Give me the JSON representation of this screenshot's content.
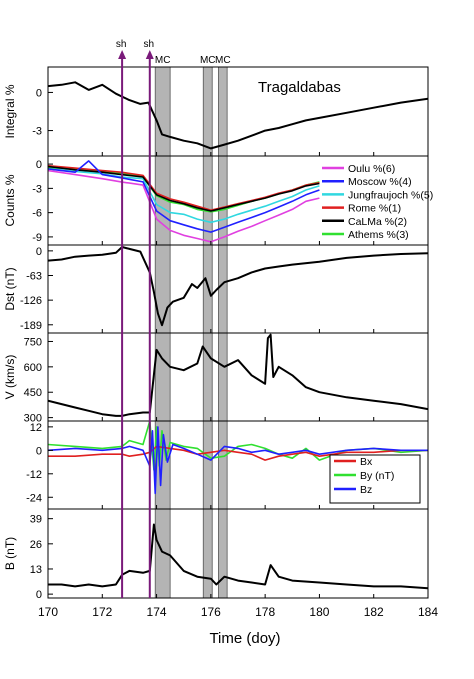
{
  "figure": {
    "station_title": "Tragaldabas",
    "xlabel": "Time (doy)",
    "x_ticks": [
      170,
      172,
      174,
      176,
      178,
      180,
      182,
      184
    ],
    "shock_label": "sh",
    "mc_label": "MC"
  },
  "chart_data": {
    "type": "line",
    "xlim": [
      170,
      184
    ],
    "shocks": [
      172.73,
      173.75
    ],
    "mc_intervals": [
      [
        173.95,
        174.5
      ],
      [
        175.72,
        176.05
      ],
      [
        176.28,
        176.6
      ]
    ],
    "panels": [
      {
        "id": "integral",
        "ylabel": "Integral %",
        "ylim": [
          -5,
          2
        ],
        "ticks": [
          0,
          -3
        ],
        "series": [
          {
            "color": "#000000",
            "x": [
              170,
              170.5,
              171,
              171.5,
              172,
              172.5,
              173,
              173.4,
              173.7,
              174,
              174.2,
              174.5,
              175,
              175.5,
              176,
              176.5,
              177,
              177.5,
              178,
              178.5,
              179,
              179.5,
              180,
              181,
              182,
              183,
              184
            ],
            "y": [
              0.5,
              0.6,
              0.8,
              0.2,
              0.6,
              -0.1,
              -0.6,
              -0.9,
              -0.8,
              -2.2,
              -3.3,
              -3.5,
              -3.8,
              -4.0,
              -4.4,
              -4.1,
              -3.8,
              -3.4,
              -3.0,
              -2.8,
              -2.5,
              -2.2,
              -2.0,
              -1.6,
              -1.2,
              -0.8,
              -0.5
            ]
          }
        ]
      },
      {
        "id": "counts",
        "ylabel": "Counts %",
        "ylim": [
          -10,
          1
        ],
        "ticks": [
          0,
          -3,
          -6,
          -9
        ],
        "legend": [
          {
            "label": "Oulu %(6)",
            "color": "#e040e0"
          },
          {
            "label": "Moscow %(4)",
            "color": "#2020ff"
          },
          {
            "label": "Jungfraujoch %(5)",
            "color": "#30d8e0"
          },
          {
            "label": "Rome %(1)",
            "color": "#e02020"
          },
          {
            "label": "CaLMa %(2)",
            "color": "#000000"
          },
          {
            "label": "Athems %(3)",
            "color": "#30e030"
          }
        ],
        "series": [
          {
            "color": "#30d8e0",
            "x": [
              170,
              171,
              172,
              172.7,
              173.5,
              174,
              174.5,
              175,
              175.5,
              176,
              176.5,
              177,
              177.5,
              178,
              178.5,
              179,
              179.5,
              180
            ],
            "y": [
              -0.5,
              -0.9,
              -1.2,
              -1.6,
              -1.8,
              -5.0,
              -6.0,
              -6.2,
              -6.8,
              -7.2,
              -6.8,
              -6.2,
              -5.7,
              -5.2,
              -4.6,
              -4.0,
              -3.2,
              -2.7
            ]
          },
          {
            "color": "#30e030",
            "x": [
              170,
              171,
              172,
              172.7,
              173.5,
              174,
              174.5,
              175,
              175.5,
              176,
              176.5,
              177,
              177.5,
              178,
              178.5,
              179,
              179.5,
              180
            ],
            "y": [
              -0.4,
              -0.6,
              -0.9,
              -1.1,
              -1.6,
              -3.9,
              -4.7,
              -5.0,
              -5.6,
              -5.9,
              -5.6,
              -5.1,
              -4.6,
              -4.2,
              -3.7,
              -3.2,
              -2.6,
              -2.2
            ]
          },
          {
            "color": "#e02020",
            "x": [
              170,
              171,
              172,
              172.7,
              173.5,
              174,
              174.5,
              175,
              175.5,
              176,
              176.5,
              177,
              177.5,
              178,
              178.5,
              179,
              179.5,
              180
            ],
            "y": [
              -0.2,
              -0.5,
              -0.8,
              -1.0,
              -1.4,
              -3.6,
              -4.3,
              -4.7,
              -5.2,
              -5.7,
              -5.3,
              -4.9,
              -4.5,
              -4.1,
              -3.6,
              -3.2,
              -2.6,
              -2.3
            ]
          },
          {
            "color": "#000000",
            "x": [
              170,
              171,
              172,
              172.7,
              173.5,
              174,
              174.5,
              175,
              175.5,
              176,
              176.5,
              177,
              177.5,
              178,
              178.5,
              179,
              179.5,
              180
            ],
            "y": [
              -0.3,
              -0.7,
              -1.0,
              -1.3,
              -1.6,
              -3.8,
              -4.5,
              -4.9,
              -5.4,
              -5.8,
              -5.4,
              -5.0,
              -4.6,
              -4.2,
              -3.7,
              -3.3,
              -2.7,
              -2.4
            ]
          },
          {
            "color": "#2020ff",
            "x": [
              170,
              171,
              171.5,
              172,
              172.7,
              173.5,
              174,
              174.5,
              175,
              175.5,
              176,
              176.5,
              177,
              177.5,
              178,
              178.5,
              179,
              179.5,
              180
            ],
            "y": [
              -0.6,
              -1.0,
              0.4,
              -1.3,
              -1.7,
              -2.2,
              -5.8,
              -7.0,
              -7.5,
              -8.0,
              -8.4,
              -7.8,
              -7.2,
              -6.6,
              -6.0,
              -5.3,
              -4.6,
              -3.8,
              -3.2
            ]
          },
          {
            "color": "#e040e0",
            "x": [
              170,
              171,
              172,
              172.7,
              173.5,
              174,
              174.5,
              175,
              175.5,
              176,
              176.5,
              177,
              177.5,
              178,
              178.5,
              179,
              179.5,
              180
            ],
            "y": [
              -0.8,
              -1.3,
              -1.8,
              -2.2,
              -2.6,
              -6.8,
              -8.2,
              -8.8,
              -9.2,
              -9.6,
              -9.0,
              -8.3,
              -7.7,
              -7.0,
              -6.3,
              -5.6,
              -4.6,
              -4.2
            ]
          }
        ]
      },
      {
        "id": "dst",
        "ylabel": "Dst (nT)",
        "ylim": [
          -210,
          15
        ],
        "ticks": [
          0,
          -63,
          -126,
          -189
        ],
        "series": [
          {
            "color": "#000000",
            "x": [
              170,
              170.5,
              171,
              171.5,
              172,
              172.5,
              172.73,
              173,
              173.4,
              173.75,
              173.9,
              174.05,
              174.2,
              174.4,
              174.6,
              175,
              175.3,
              175.5,
              175.8,
              176,
              176.2,
              176.5,
              177,
              177.5,
              178,
              178.5,
              179,
              180,
              181,
              182,
              183,
              184
            ],
            "y": [
              -25,
              -22,
              -15,
              -12,
              -10,
              -5,
              10,
              5,
              -2,
              -55,
              -105,
              -160,
              -190,
              -145,
              -130,
              -120,
              -85,
              -95,
              -70,
              -115,
              -100,
              -80,
              -70,
              -55,
              -45,
              -40,
              -35,
              -28,
              -18,
              -12,
              -8,
              -6
            ]
          }
        ]
      },
      {
        "id": "speed",
        "ylabel": "V (km/s)",
        "ylim": [
          280,
          800
        ],
        "ticks": [
          300,
          450,
          600,
          750
        ],
        "series": [
          {
            "color": "#000000",
            "x": [
              170,
              170.5,
              171,
              171.5,
              172,
              172.5,
              172.73,
              173,
              173.5,
              173.75,
              174,
              174.2,
              174.5,
              175,
              175.5,
              175.7,
              176,
              176.5,
              177,
              177.5,
              178,
              178.1,
              178.2,
              178.3,
              178.5,
              179,
              179.5,
              180,
              181,
              182,
              183,
              184
            ],
            "y": [
              400,
              380,
              360,
              340,
              320,
              310,
              310,
              320,
              330,
              330,
              700,
              650,
              600,
              580,
              620,
              720,
              650,
              600,
              640,
              550,
              500,
              770,
              790,
              540,
              600,
              550,
              480,
              450,
              420,
              400,
              380,
              350
            ]
          }
        ]
      },
      {
        "id": "imf",
        "ylabel": "",
        "ylim": [
          -30,
          15
        ],
        "ticks": [
          12,
          0,
          -12,
          -24
        ],
        "legend": [
          {
            "label": "Bx",
            "color": "#e02020"
          },
          {
            "label": "By  (nT)",
            "color": "#30e030"
          },
          {
            "label": "Bz",
            "color": "#2020ff"
          }
        ],
        "series": [
          {
            "color": "#30e030",
            "x": [
              170,
              171,
              172,
              172.73,
              173,
              173.5,
              173.75,
              173.9,
              174.0,
              174.1,
              174.2,
              174.35,
              174.5,
              175,
              175.5,
              176,
              176.5,
              177,
              177.5,
              178,
              178.5,
              179,
              179.5,
              180,
              181,
              182,
              183,
              184
            ],
            "y": [
              3,
              2,
              1,
              2,
              5,
              3,
              15,
              -10,
              12,
              -8,
              10,
              -5,
              4,
              2,
              1,
              -4,
              -3,
              2,
              3,
              1,
              -2,
              -4,
              1,
              -5,
              0,
              1,
              -1,
              0
            ]
          },
          {
            "color": "#e02020",
            "x": [
              170,
              171,
              172,
              172.73,
              173,
              173.5,
              173.75,
              174,
              174.5,
              175,
              175.5,
              176,
              176.5,
              177,
              177.5,
              178,
              178.5,
              179,
              179.5,
              180,
              181,
              182,
              183,
              184
            ],
            "y": [
              -3,
              -3,
              -2,
              -2,
              -3,
              -2,
              -1,
              2,
              1,
              0,
              -2,
              -1,
              0,
              -1,
              -2,
              -5,
              -3,
              -2,
              -1,
              -3,
              -1,
              -1,
              0,
              0
            ]
          },
          {
            "color": "#2020ff",
            "x": [
              170,
              171,
              172,
              172.73,
              173,
              173.5,
              173.75,
              173.85,
              173.95,
              174.05,
              174.15,
              174.25,
              174.4,
              174.6,
              175,
              175.5,
              176,
              176.5,
              177,
              177.5,
              178,
              178.5,
              179,
              179.5,
              180,
              181,
              182,
              183,
              184
            ],
            "y": [
              0,
              1,
              0,
              1,
              2,
              0,
              -8,
              10,
              -22,
              12,
              -18,
              8,
              -6,
              3,
              1,
              -2,
              -5,
              2,
              1,
              -1,
              0,
              -2,
              -1,
              0,
              -2,
              0,
              1,
              0,
              0
            ]
          }
        ]
      },
      {
        "id": "btotal",
        "ylabel": "B (nT)",
        "ylim": [
          -2,
          44
        ],
        "ticks": [
          0,
          13,
          26,
          39
        ],
        "series": [
          {
            "color": "#000000",
            "x": [
              170,
              170.5,
              171,
              171.5,
              172,
              172.5,
              172.73,
              173,
              173.5,
              173.75,
              173.9,
              174.0,
              174.2,
              174.5,
              175,
              175.5,
              176,
              176.2,
              176.5,
              177,
              177.5,
              178,
              178.2,
              178.5,
              179,
              180,
              181,
              182,
              183,
              184
            ],
            "y": [
              5,
              5,
              4,
              5,
              4,
              5,
              10,
              12,
              11,
              12,
              36,
              28,
              22,
              20,
              12,
              9,
              8,
              5,
              9,
              7,
              6,
              5,
              15,
              9,
              7,
              6,
              5,
              4,
              4,
              3
            ]
          }
        ]
      }
    ]
  }
}
